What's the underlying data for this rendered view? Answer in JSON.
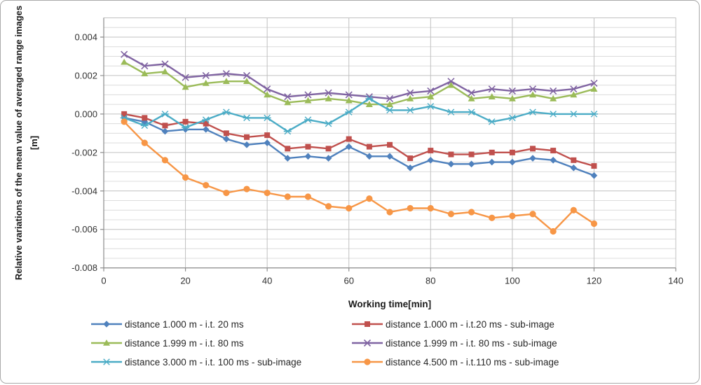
{
  "figure": {
    "x_axis_title": "Working time[min]",
    "y_axis_title_line1": "Relative variations of the mean value of averaged range images",
    "y_axis_title_line2": "[m]"
  },
  "chart_data": {
    "type": "line",
    "title": "",
    "xlabel": "Working time[min]",
    "ylabel": "Relative variations of the mean value of averaged range images",
    "ylabel_unit": "[m]",
    "xlim": [
      0,
      140
    ],
    "ylim": [
      -0.008,
      0.005
    ],
    "grid": {
      "horizontal_minor_step": 0.0005,
      "horizontal_major_step": 0.002,
      "vertical_major_step": 20,
      "gridlines_on": true
    },
    "legend_position": "bottom-two-columns",
    "x_ticks": [
      {
        "v": 0,
        "label": "0"
      },
      {
        "v": 20,
        "label": "20"
      },
      {
        "v": 40,
        "label": "40"
      },
      {
        "v": 60,
        "label": "60"
      },
      {
        "v": 80,
        "label": "80"
      },
      {
        "v": 100,
        "label": "100"
      },
      {
        "v": 120,
        "label": "120"
      },
      {
        "v": 140,
        "label": "140"
      }
    ],
    "y_ticks": [
      {
        "v": 0.004,
        "label": "0.004"
      },
      {
        "v": 0.002,
        "label": "0.002"
      },
      {
        "v": 0.0,
        "label": "0.000"
      },
      {
        "v": -0.002,
        "label": "-0.002"
      },
      {
        "v": -0.004,
        "label": "-0.004"
      },
      {
        "v": -0.006,
        "label": "-0.006"
      },
      {
        "v": -0.008,
        "label": "-0.008"
      }
    ],
    "x": [
      5,
      10,
      15,
      20,
      25,
      30,
      35,
      40,
      45,
      50,
      55,
      60,
      65,
      70,
      75,
      80,
      85,
      90,
      95,
      100,
      105,
      110,
      115,
      120
    ],
    "series": [
      {
        "name": "distance 1.000 m - i.t. 20 ms",
        "color": "#4F81BD",
        "marker": "diamond",
        "legend_column": 1,
        "legend_row": 1,
        "values": [
          -0.0002,
          -0.0004,
          -0.0009,
          -0.0008,
          -0.0008,
          -0.0013,
          -0.0016,
          -0.0015,
          -0.0023,
          -0.0022,
          -0.0023,
          -0.0017,
          -0.0022,
          -0.0022,
          -0.0028,
          -0.0024,
          -0.0026,
          -0.0026,
          -0.0025,
          -0.0025,
          -0.0023,
          -0.0024,
          -0.0028,
          -0.0032
        ]
      },
      {
        "name": "distance 1.000 m - i.t.20 ms - sub-image",
        "color": "#C0504D",
        "marker": "square",
        "legend_column": 2,
        "legend_row": 1,
        "values": [
          0.0,
          -0.0002,
          -0.0006,
          -0.0004,
          -0.0005,
          -0.001,
          -0.0012,
          -0.0011,
          -0.0018,
          -0.0017,
          -0.0018,
          -0.0013,
          -0.0017,
          -0.0016,
          -0.0023,
          -0.0019,
          -0.0021,
          -0.0021,
          -0.002,
          -0.002,
          -0.0018,
          -0.0019,
          -0.0024,
          -0.0027
        ]
      },
      {
        "name": "distance 1.999 m - i.t. 80 ms",
        "color": "#9BBB59",
        "marker": "triangle",
        "legend_column": 1,
        "legend_row": 2,
        "values": [
          0.0027,
          0.0021,
          0.0022,
          0.0014,
          0.0016,
          0.0017,
          0.0017,
          0.001,
          0.0006,
          0.0007,
          0.0008,
          0.0007,
          0.0005,
          0.0005,
          0.0008,
          0.0009,
          0.0015,
          0.0008,
          0.0009,
          0.0008,
          0.001,
          0.0008,
          0.001,
          0.0013
        ]
      },
      {
        "name": "distance 1.999 m - i.t. 80 ms - sub-image",
        "color": "#8064A2",
        "marker": "xmark",
        "legend_column": 2,
        "legend_row": 2,
        "values": [
          0.0031,
          0.0025,
          0.0026,
          0.0019,
          0.002,
          0.0021,
          0.002,
          0.0013,
          0.0009,
          0.001,
          0.0011,
          0.001,
          0.0009,
          0.0008,
          0.0011,
          0.0012,
          0.0017,
          0.0011,
          0.0013,
          0.0012,
          0.0013,
          0.0012,
          0.0013,
          0.0016
        ]
      },
      {
        "name": "distance 3.000 m - i.t. 100 ms - sub-image",
        "color": "#4BACC6",
        "marker": "star",
        "legend_column": 1,
        "legend_row": 3,
        "values": [
          -0.0002,
          -0.0006,
          0.0,
          -0.0007,
          -0.0003,
          0.0001,
          -0.0002,
          -0.0002,
          -0.0009,
          -0.0003,
          -0.0005,
          0.0001,
          0.0008,
          0.0002,
          0.0002,
          0.0004,
          0.0001,
          0.0001,
          -0.0004,
          -0.0002,
          0.0001,
          0.0,
          0.0,
          0.0
        ]
      },
      {
        "name": "distance 4.500 m - i.t.110 ms - sub-image",
        "color": "#F79646",
        "marker": "circle",
        "legend_column": 2,
        "legend_row": 3,
        "values": [
          -0.0004,
          -0.0015,
          -0.0024,
          -0.0033,
          -0.0037,
          -0.0041,
          -0.0039,
          -0.0041,
          -0.0043,
          -0.0043,
          -0.0048,
          -0.0049,
          -0.0044,
          -0.0051,
          -0.0049,
          -0.0049,
          -0.0052,
          -0.0051,
          -0.0054,
          -0.0053,
          -0.0052,
          -0.0061,
          -0.005,
          -0.0057
        ]
      }
    ]
  }
}
